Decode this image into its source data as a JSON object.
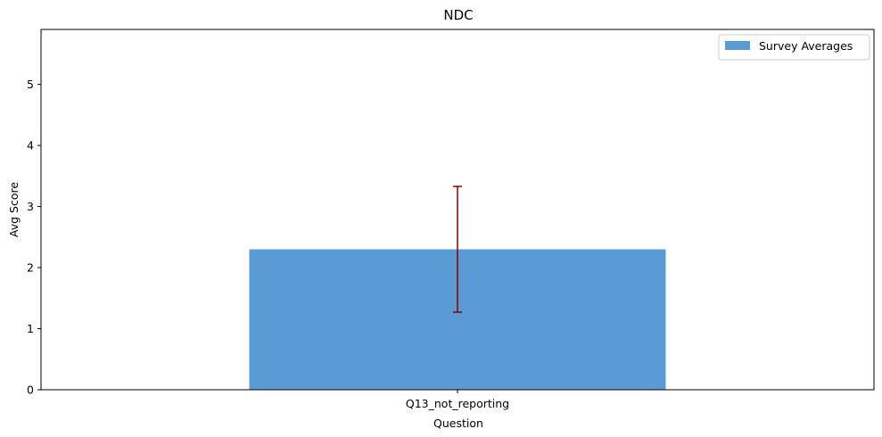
{
  "chart_data": {
    "type": "bar",
    "title": "NDC",
    "xlabel": "Question",
    "ylabel": "Avg Score",
    "categories": [
      "Q13_not_reporting"
    ],
    "series": [
      {
        "name": "Survey Averages",
        "values": [
          2.3
        ],
        "error_low": [
          1.27
        ],
        "error_high": [
          3.33
        ],
        "color": "#5b9bd5",
        "error_color": "#8b0000"
      }
    ],
    "ylim": [
      0,
      5.9
    ],
    "yticks": [
      "0",
      "1",
      "2",
      "3",
      "4",
      "5"
    ],
    "grid": false,
    "legend_position": "top-right"
  }
}
